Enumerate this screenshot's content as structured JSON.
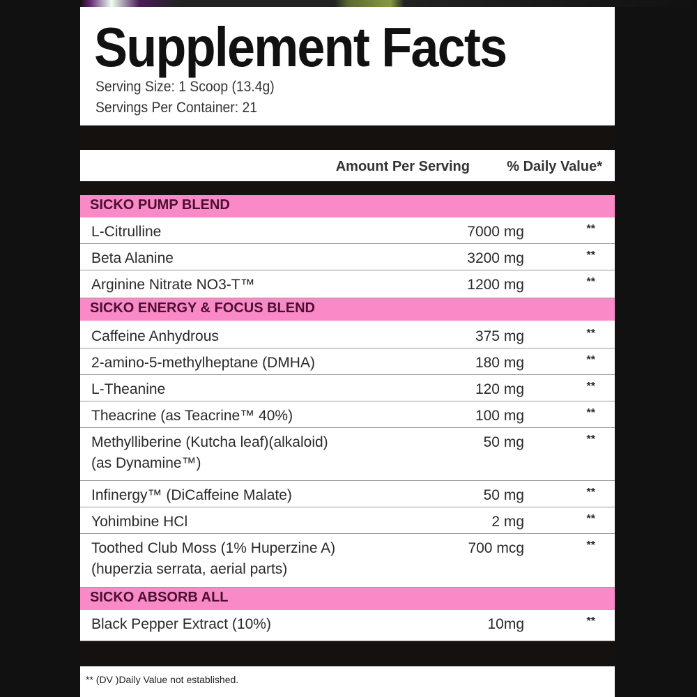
{
  "title": "Supplement Facts",
  "serving_size": "Serving Size: 1 Scoop (13.4g)",
  "servings_per_container": "Servings Per Container: 21",
  "header": {
    "amount": "Amount Per Serving",
    "dv": "% Daily Value*"
  },
  "blends": [
    {
      "name": "SICKO PUMP BLEND",
      "items": [
        {
          "name": "L-Citrulline",
          "amount": "7000 mg",
          "dv": "**"
        },
        {
          "name": "Beta Alanine",
          "amount": "3200 mg",
          "dv": "**"
        },
        {
          "name": "Arginine Nitrate NO3-T™",
          "amount": "1200 mg",
          "dv": "**"
        }
      ]
    },
    {
      "name": "SICKO ENERGY & FOCUS BLEND",
      "items": [
        {
          "name": "Caffeine Anhydrous",
          "amount": "375 mg",
          "dv": "**"
        },
        {
          "name": "2-amino-5-methylheptane (DMHA)",
          "amount": "180 mg",
          "dv": "**"
        },
        {
          "name": "L-Theanine",
          "amount": "120 mg",
          "dv": "**"
        },
        {
          "name": "Theacrine (as Teacrine™ 40%)",
          "amount": "100 mg",
          "dv": "**"
        },
        {
          "name": "Methylliberine (Kutcha leaf)(alkaloid)",
          "name2": "(as Dynamine™)",
          "amount": "50 mg",
          "dv": "**"
        },
        {
          "name": "Infinergy™ (DiCaffeine Malate)",
          "amount": "50 mg",
          "dv": "**"
        },
        {
          "name": "Yohimbine HCl",
          "amount": "2 mg",
          "dv": "**"
        },
        {
          "name": "Toothed Club Moss (1% Huperzine A)",
          "name2": "(huperzia serrata, aerial parts)",
          "amount": "700 mcg",
          "dv": "**"
        }
      ]
    },
    {
      "name": "SICKO ABSORB ALL",
      "items": [
        {
          "name": "Black Pepper Extract (10%)",
          "amount": "10mg",
          "dv": "**"
        }
      ]
    }
  ],
  "footnote": "** (DV )Daily Value not established.",
  "colors": {
    "blend_band": "#f98ac7",
    "bar": "#15110f"
  }
}
